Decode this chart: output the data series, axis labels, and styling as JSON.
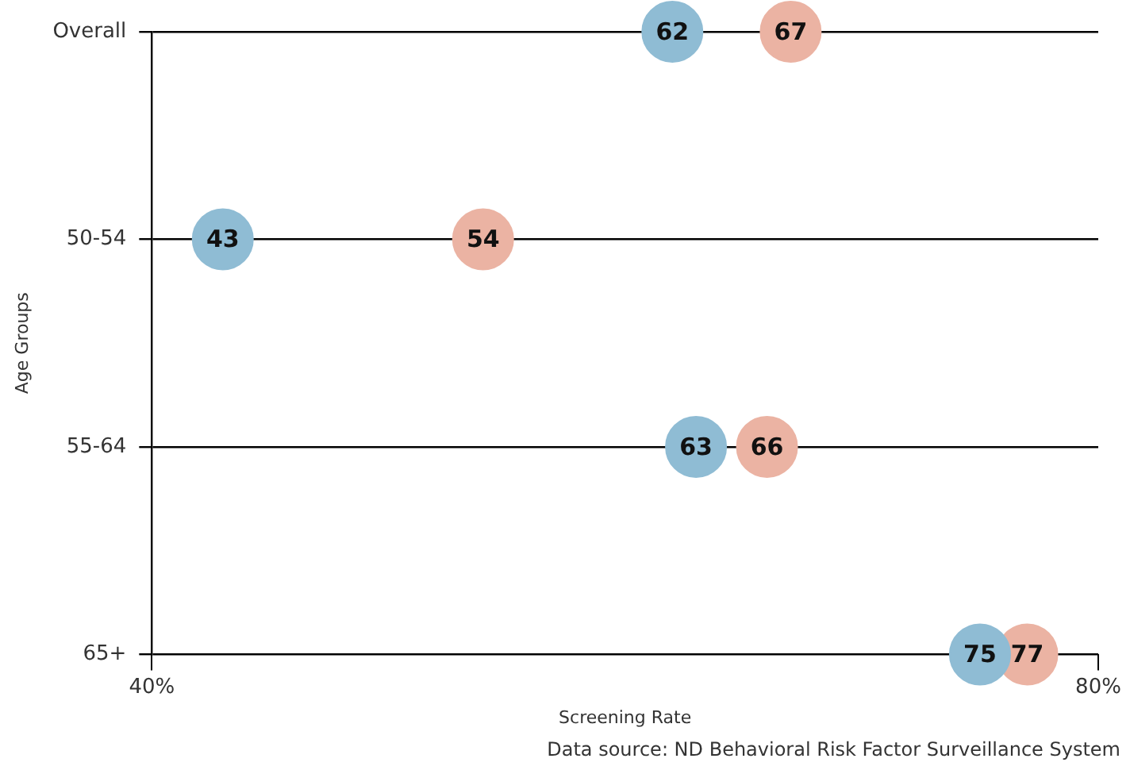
{
  "chart_data": {
    "type": "scatter",
    "orientation": "horizontal",
    "categories": [
      "Overall",
      "50-54",
      "55-64",
      "65+"
    ],
    "series": [
      {
        "color": "#8fbcd4",
        "values": [
          62,
          43,
          63,
          75
        ]
      },
      {
        "color": "#ebb3a3",
        "values": [
          67,
          54,
          66,
          77
        ]
      }
    ],
    "xlim": [
      40,
      80
    ],
    "xticks": [
      {
        "value": 40,
        "label": "40%"
      },
      {
        "value": 80,
        "label": "80%"
      }
    ],
    "xlabel": "Screening Rate",
    "ylabel": "Age Groups",
    "grid": "y",
    "legend": false,
    "marker": "circle",
    "data_labels": true,
    "annotations": [
      "Data source: ND Behavioral Risk Factor Surveillance System"
    ]
  }
}
